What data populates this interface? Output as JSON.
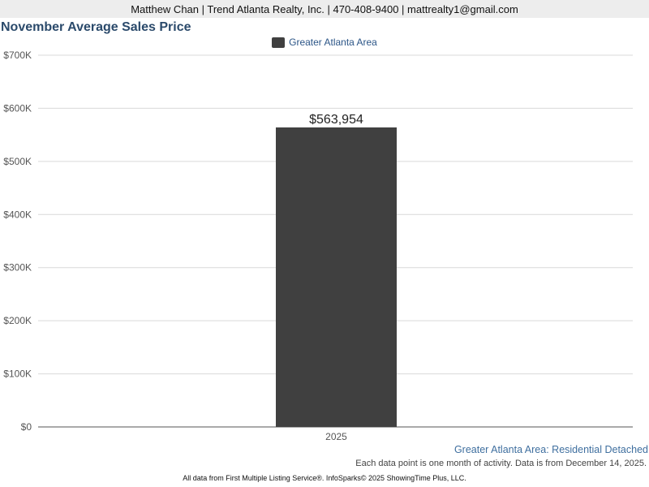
{
  "header": {
    "contact": "Matthew Chan | Trend Atlanta Realty, Inc. | 470-408-9400 | mattrealty1@gmail.com"
  },
  "colors": {
    "bar": "#404040",
    "grid": "#d9d9d9",
    "title": "#2b4a6b",
    "legend_text": "#2b5587",
    "source_text": "#3f6f9f"
  },
  "chart_data": {
    "type": "bar",
    "title": "November Average Sales Price",
    "categories": [
      "2025"
    ],
    "series": [
      {
        "name": "Greater Atlanta Area",
        "values": [
          563954
        ]
      }
    ],
    "data_labels": [
      "$563,954"
    ],
    "ylim": [
      0,
      700000
    ],
    "ytick_values": [
      0,
      100000,
      200000,
      300000,
      400000,
      500000,
      600000,
      700000
    ],
    "ytick_labels": [
      "$0",
      "$100K",
      "$200K",
      "$300K",
      "$400K",
      "$500K",
      "$600K",
      "$700K"
    ],
    "grid": true,
    "legend_position": "top-center"
  },
  "footer": {
    "source": "Greater Atlanta Area: Residential Detached",
    "note": "Each data point is one month of activity. Data is from December 14, 2025.",
    "credit": "All data from First Multiple Listing Service®. InfoSparks© 2025 ShowingTime Plus, LLC."
  }
}
